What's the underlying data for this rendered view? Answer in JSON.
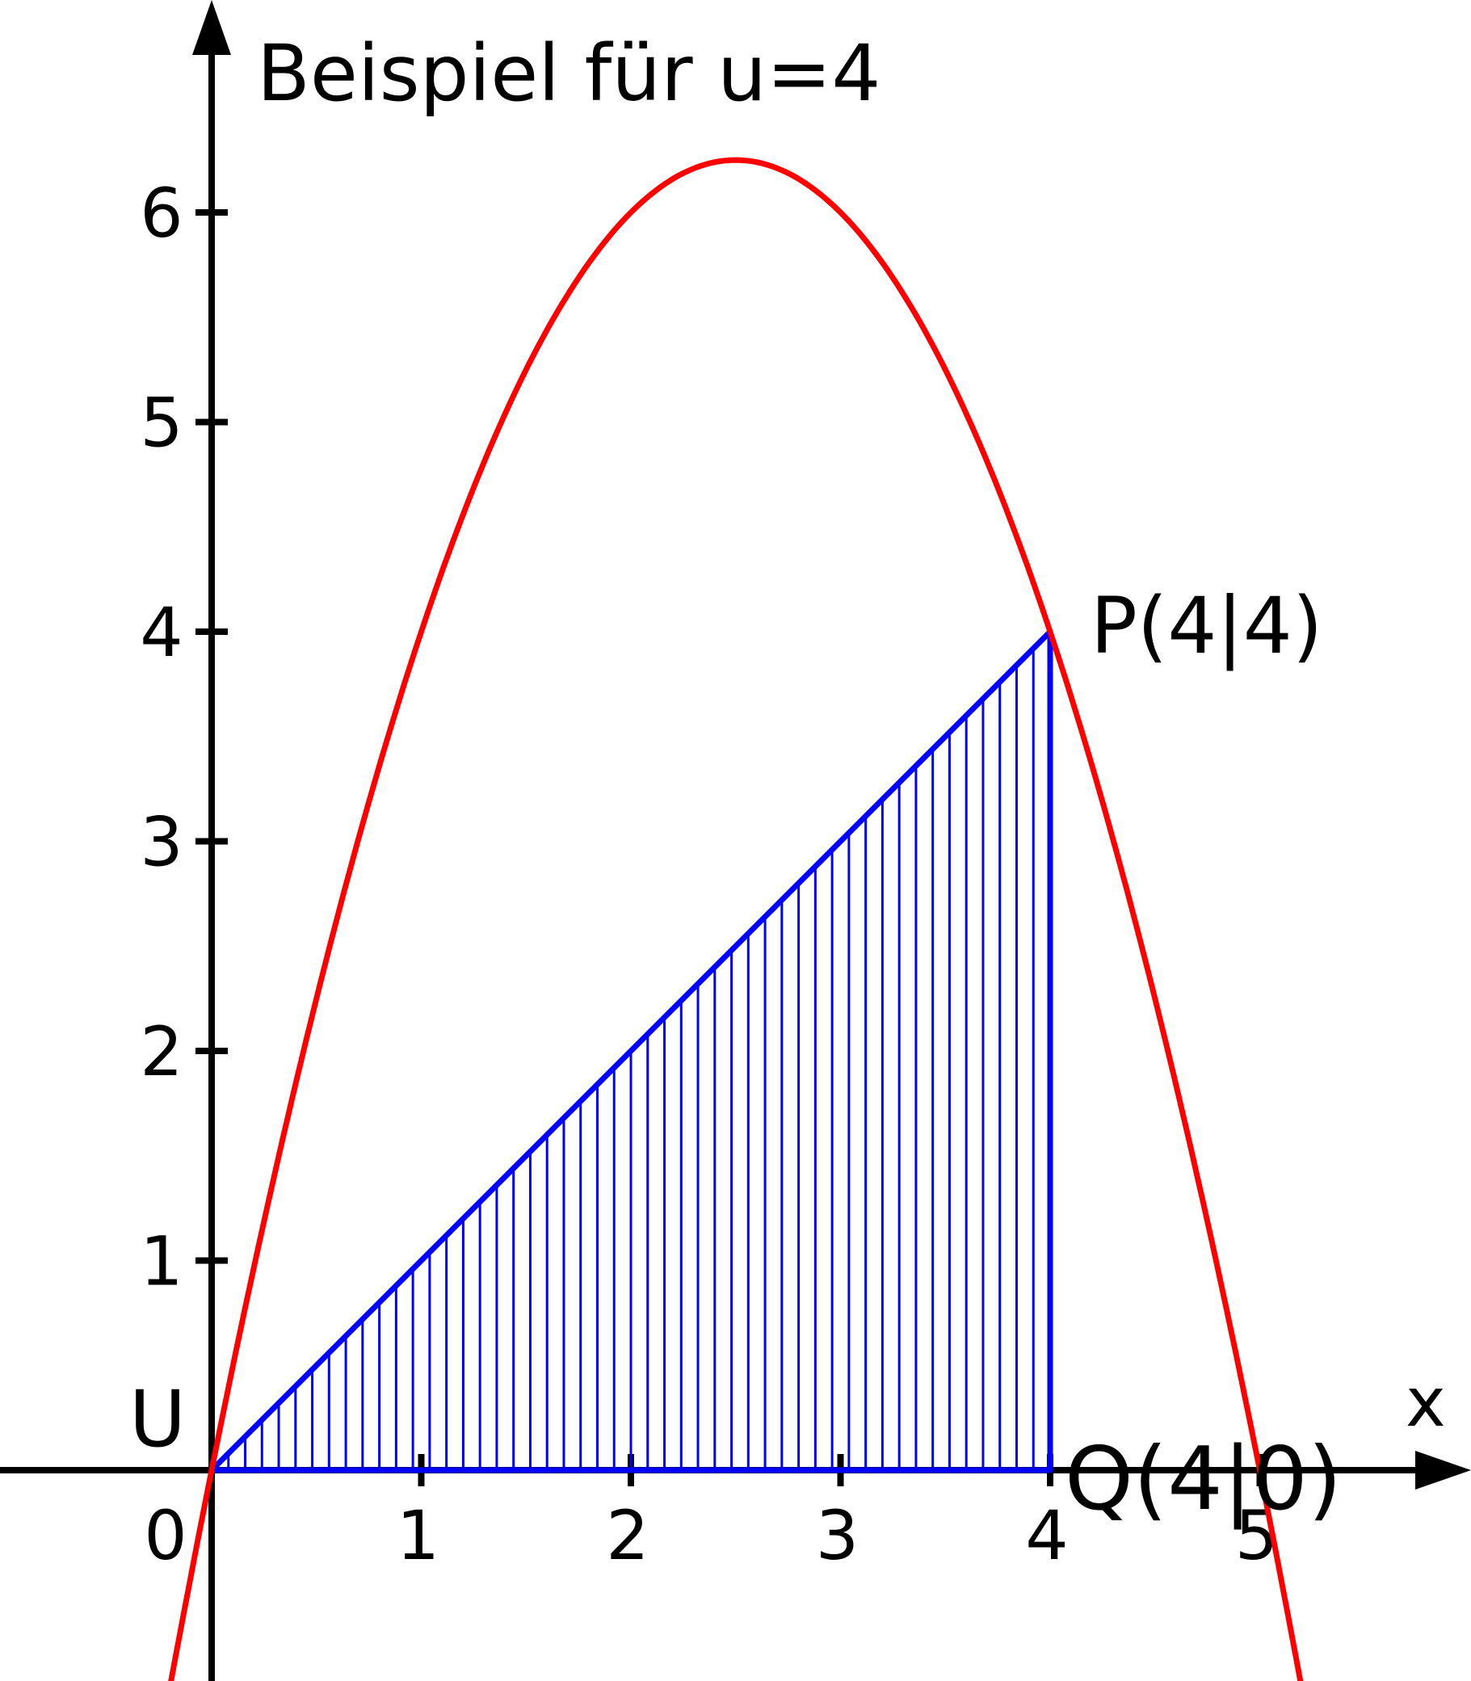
{
  "title": "Beispiel für u=4",
  "axes": {
    "x_label": "x",
    "origin_label": "0",
    "x_ticks": [
      {
        "value": 1,
        "label": "1"
      },
      {
        "value": 2,
        "label": "2"
      },
      {
        "value": 3,
        "label": "3"
      },
      {
        "value": 4,
        "label": "4"
      },
      {
        "value": 5,
        "label": "5"
      }
    ],
    "y_ticks": [
      {
        "value": 1,
        "label": "1"
      },
      {
        "value": 2,
        "label": "2"
      },
      {
        "value": 3,
        "label": "3"
      },
      {
        "value": 4,
        "label": "4"
      },
      {
        "value": 5,
        "label": "5"
      },
      {
        "value": 6,
        "label": "6"
      }
    ]
  },
  "points": {
    "U": {
      "label": "U",
      "x": 0,
      "y": 0
    },
    "P": {
      "label": "P(4|4)",
      "x": 4,
      "y": 4
    },
    "Q": {
      "label": "Q(4|0)",
      "x": 4,
      "y": 0
    }
  },
  "curve": {
    "color": "#ff0000",
    "vertex": {
      "x": 2.5,
      "y": 6.25
    },
    "x_range": [
      -0.2,
      5.2
    ]
  },
  "triangle": {
    "color": "#0000ff",
    "vertices": [
      [
        0,
        0
      ],
      [
        4,
        4
      ],
      [
        4,
        0
      ]
    ],
    "hatch_step": 0.08
  },
  "colors": {
    "axes": "#000000",
    "curve": "#ff0000",
    "triangle": "#0000ff"
  }
}
